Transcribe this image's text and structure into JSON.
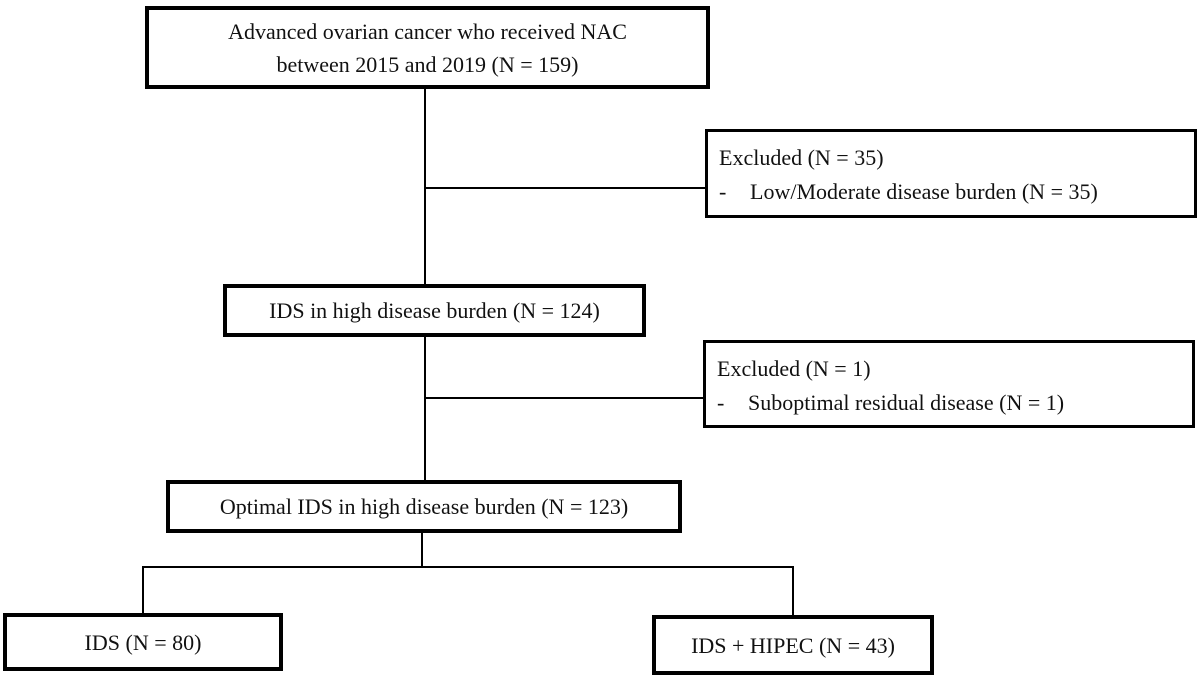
{
  "diagram": {
    "type": "flowchart",
    "colors": {
      "background": "#ffffff",
      "border": "#000000",
      "text": "#111111"
    },
    "nodes": {
      "top": {
        "line1": "Advanced ovarian cancer who received NAC",
        "line2": "between 2015 and 2019 (N = 159)"
      },
      "excluded_1": {
        "title": "Excluded (N = 35)",
        "bullet": "-",
        "item": "Low/Moderate disease burden (N = 35)"
      },
      "ids": {
        "label": "IDS in high disease burden (N = 124)"
      },
      "excluded_2": {
        "title": "Excluded (N = 1)",
        "bullet": "-",
        "item": "Suboptimal residual disease (N = 1)"
      },
      "optimal": {
        "label": "Optimal IDS in high disease burden (N = 123)"
      },
      "ids_only": {
        "label": "IDS (N = 80)"
      },
      "ids_hipec": {
        "label": "IDS + HIPEC (N = 43)"
      }
    }
  }
}
